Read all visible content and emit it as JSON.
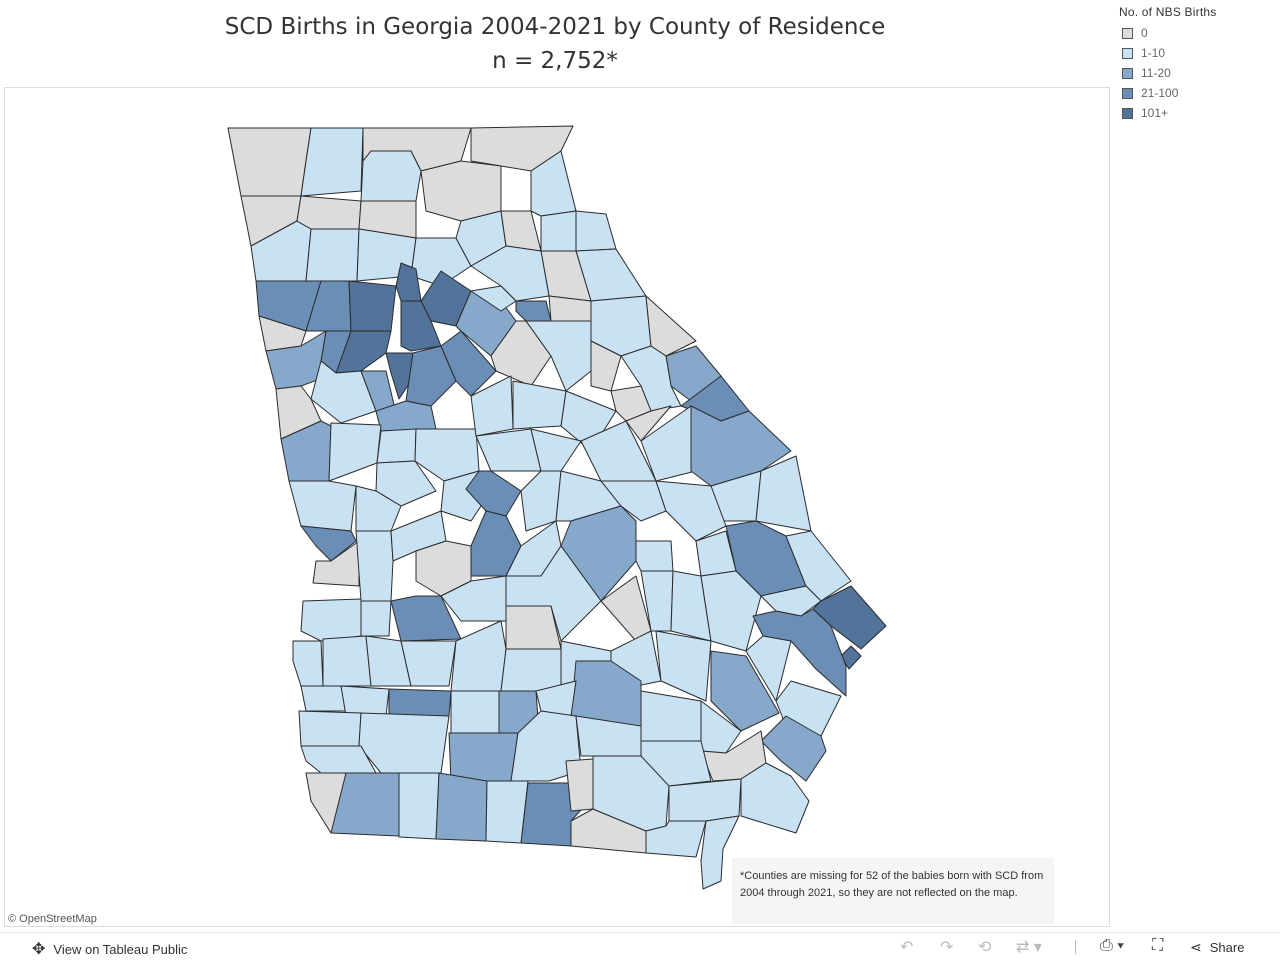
{
  "title": {
    "line1": "SCD Births in Georgia 2004-2021 by County of Residence",
    "line2": "n = 2,752*"
  },
  "legend": {
    "title": "No. of NBS Births",
    "items": [
      {
        "label": "0",
        "color": "#dcdcdc"
      },
      {
        "label": "1-10",
        "color": "#c8e1f3"
      },
      {
        "label": "11-20",
        "color": "#86a9cb"
      },
      {
        "label": "21-100",
        "color": "#6b8eb6"
      },
      {
        "label": "101+",
        "color": "#52739a"
      }
    ]
  },
  "note": "*Counties are missing for 52 of the babies born with SCD from 2004 through 2021, so they are not reflected on the map.",
  "attribution": "© OpenStreetMap",
  "footer": {
    "view_label": "View on Tableau Public",
    "share_label": "Share",
    "icons": [
      "undo-icon",
      "redo-icon",
      "revert-icon",
      "refresh-icon",
      "download-icon",
      "fullscreen-icon",
      "share-icon"
    ]
  }
}
